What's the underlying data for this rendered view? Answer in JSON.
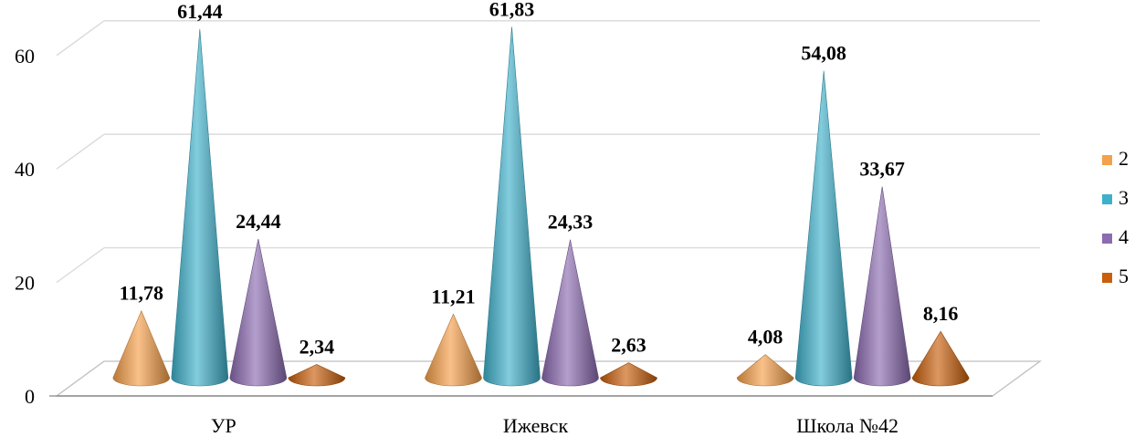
{
  "chart_data": {
    "type": "bar",
    "shape": "cone-3d",
    "categories": [
      "УР",
      "Ижевск",
      "Школа №42"
    ],
    "series": [
      {
        "name": "2",
        "values": [
          11.78,
          11.21,
          4.08
        ],
        "labels": [
          "11,78",
          "11,21",
          "4,08"
        ],
        "color": "#f5a04a"
      },
      {
        "name": "3",
        "values": [
          61.44,
          61.83,
          54.08
        ],
        "labels": [
          "61,44",
          "61,83",
          "54,08"
        ],
        "color": "#3fb0cb"
      },
      {
        "name": "4",
        "values": [
          24.44,
          24.33,
          33.67
        ],
        "labels": [
          "24,44",
          "24,33",
          "33,67"
        ],
        "color": "#8c6bb1"
      },
      {
        "name": "5",
        "values": [
          2.34,
          2.63,
          8.16
        ],
        "labels": [
          "2,34",
          "2,63",
          "8,16"
        ],
        "color": "#c95f0c"
      }
    ],
    "ylim": [
      0,
      60
    ],
    "yticks": [
      0,
      20,
      40,
      60
    ],
    "grid": true,
    "legend": "right"
  }
}
